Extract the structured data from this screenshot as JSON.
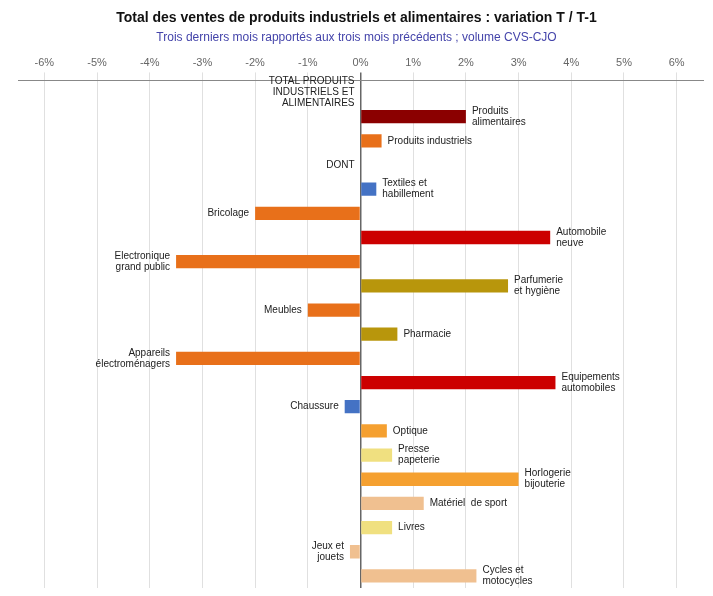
{
  "chart_data": {
    "type": "bar",
    "orientation": "horizontal",
    "title": "Total des ventes de produits industriels et alimentaires : variation T / T-1",
    "subtitle": "Trois derniers mois rapportés aux trois mois précédents ; volume CVS-CJO",
    "categories": [
      "TOTAL PRODUITS\nINDUSTRIELS ET\nALIMENTAIRES",
      "Produits\nalimentaires",
      "Produits industriels",
      "DONT",
      "Textiles et\nhabillement",
      "Bricolage",
      "Automobile\nneuve",
      "Electronique\ngrand public",
      "Parfumerie\net hygiène",
      "Meubles",
      "Pharmacie",
      "Appareils\nélectroménagers",
      "Equipements\nautomobiles",
      "Chaussure",
      "Optique",
      "Presse\npapeterie",
      "Horlogerie\nbijouterie",
      "Matériel  de sport",
      "Livres",
      "Jeux et\njouets",
      "Cycles et\nmotocycles"
    ],
    "values": [
      0,
      2.0,
      0.4,
      0,
      0.3,
      -2.0,
      3.6,
      -3.5,
      2.8,
      -1.0,
      0.7,
      -3.5,
      3.7,
      -0.3,
      0.5,
      0.6,
      3.0,
      1.2,
      0.6,
      -0.2,
      2.2
    ],
    "colors": [
      "#ffffff",
      "#8B0000",
      "#E8701A",
      "#ffffff",
      "#4472C4",
      "#E8701A",
      "#CC0000",
      "#E8701A",
      "#B8960C",
      "#E8701A",
      "#B8960C",
      "#E8701A",
      "#CC0000",
      "#4472C4",
      "#F5A030",
      "#F0E080",
      "#F5A030",
      "#F0C090",
      "#F0E080",
      "#F0C090",
      "#F0C090"
    ],
    "xlim": [
      -6.5,
      6.5
    ],
    "xticks": [
      {
        "value": -6,
        "label": "-6%"
      },
      {
        "value": -5,
        "label": "-5%"
      },
      {
        "value": -4,
        "label": "-4%"
      },
      {
        "value": -3,
        "label": "-3%"
      },
      {
        "value": -2,
        "label": "-2%"
      },
      {
        "value": -1,
        "label": "-1%"
      },
      {
        "value": 0,
        "label": "0%"
      },
      {
        "value": 1,
        "label": "1%"
      },
      {
        "value": 2,
        "label": "2%"
      },
      {
        "value": 3,
        "label": "3%"
      },
      {
        "value": 4,
        "label": "4%"
      },
      {
        "value": 5,
        "label": "5%"
      },
      {
        "value": 6,
        "label": "6%"
      }
    ],
    "grid": true,
    "tick_labels": "x"
  }
}
